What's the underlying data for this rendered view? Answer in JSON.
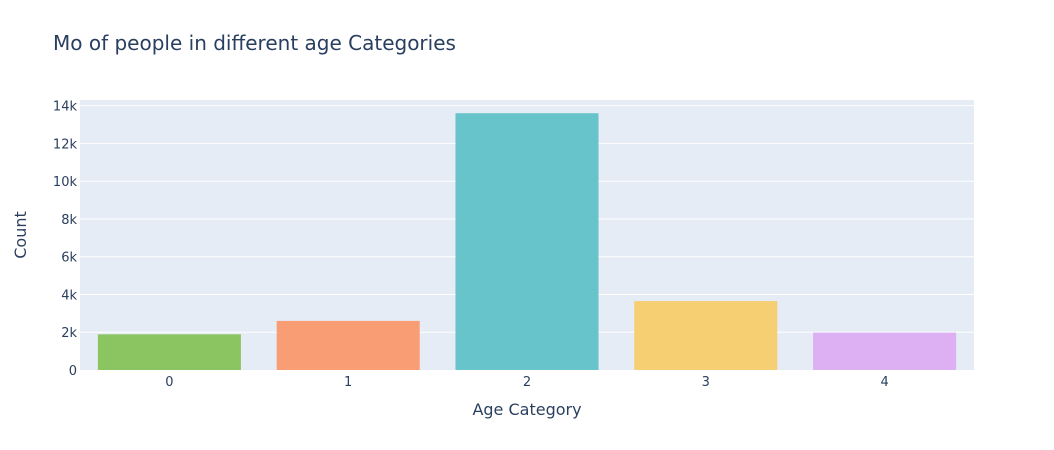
{
  "chart_data": {
    "type": "bar",
    "title": "Mo of people in different age Categories",
    "xlabel": "Age Category",
    "ylabel": "Count",
    "categories": [
      "0",
      "1",
      "2",
      "3",
      "4"
    ],
    "values": [
      1890,
      2600,
      13600,
      3650,
      1980
    ],
    "colors": [
      "#8bc562",
      "#f99e74",
      "#66c4ca",
      "#f5cf72",
      "#dcb0f2"
    ],
    "ylim": [
      0,
      14300
    ],
    "yticks": [
      0,
      2000,
      4000,
      6000,
      8000,
      10000,
      12000,
      14000
    ],
    "ytick_labels": [
      "0",
      "2k",
      "4k",
      "6k",
      "8k",
      "10k",
      "12k",
      "14k"
    ],
    "grid": true,
    "plot_background": "#e5ecf6",
    "legend": "none"
  }
}
